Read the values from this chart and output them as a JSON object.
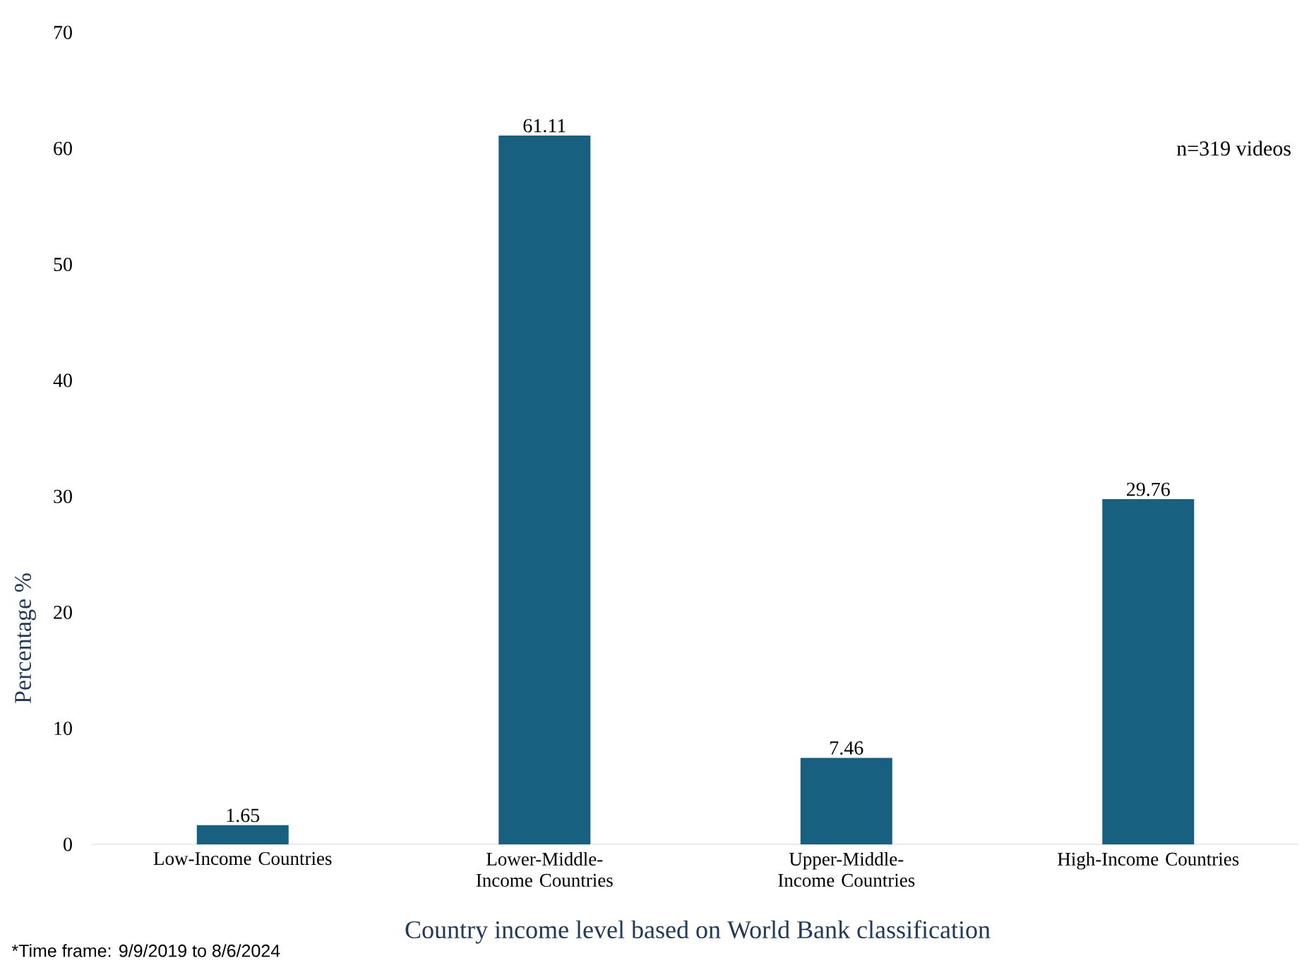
{
  "chart_data": {
    "type": "bar",
    "xlabel": "Country income level based on World Bank classification",
    "ylabel": "Percentage %",
    "categories": [
      "Low-Income Countries",
      "Lower-Middle-Income Countries",
      "Upper-Middle-Income Countries",
      "High-Income Countries"
    ],
    "values": [
      1.65,
      61.11,
      7.46,
      29.76
    ],
    "color": "#17607f",
    "data_labels": true,
    "ylim": [
      0,
      70
    ],
    "yticks": [
      0,
      10,
      20,
      30,
      40,
      50,
      60,
      70
    ],
    "annotations": [
      "n=319 videos",
      "*Time frame: 9/9/2019 to 8/6/2024"
    ]
  }
}
